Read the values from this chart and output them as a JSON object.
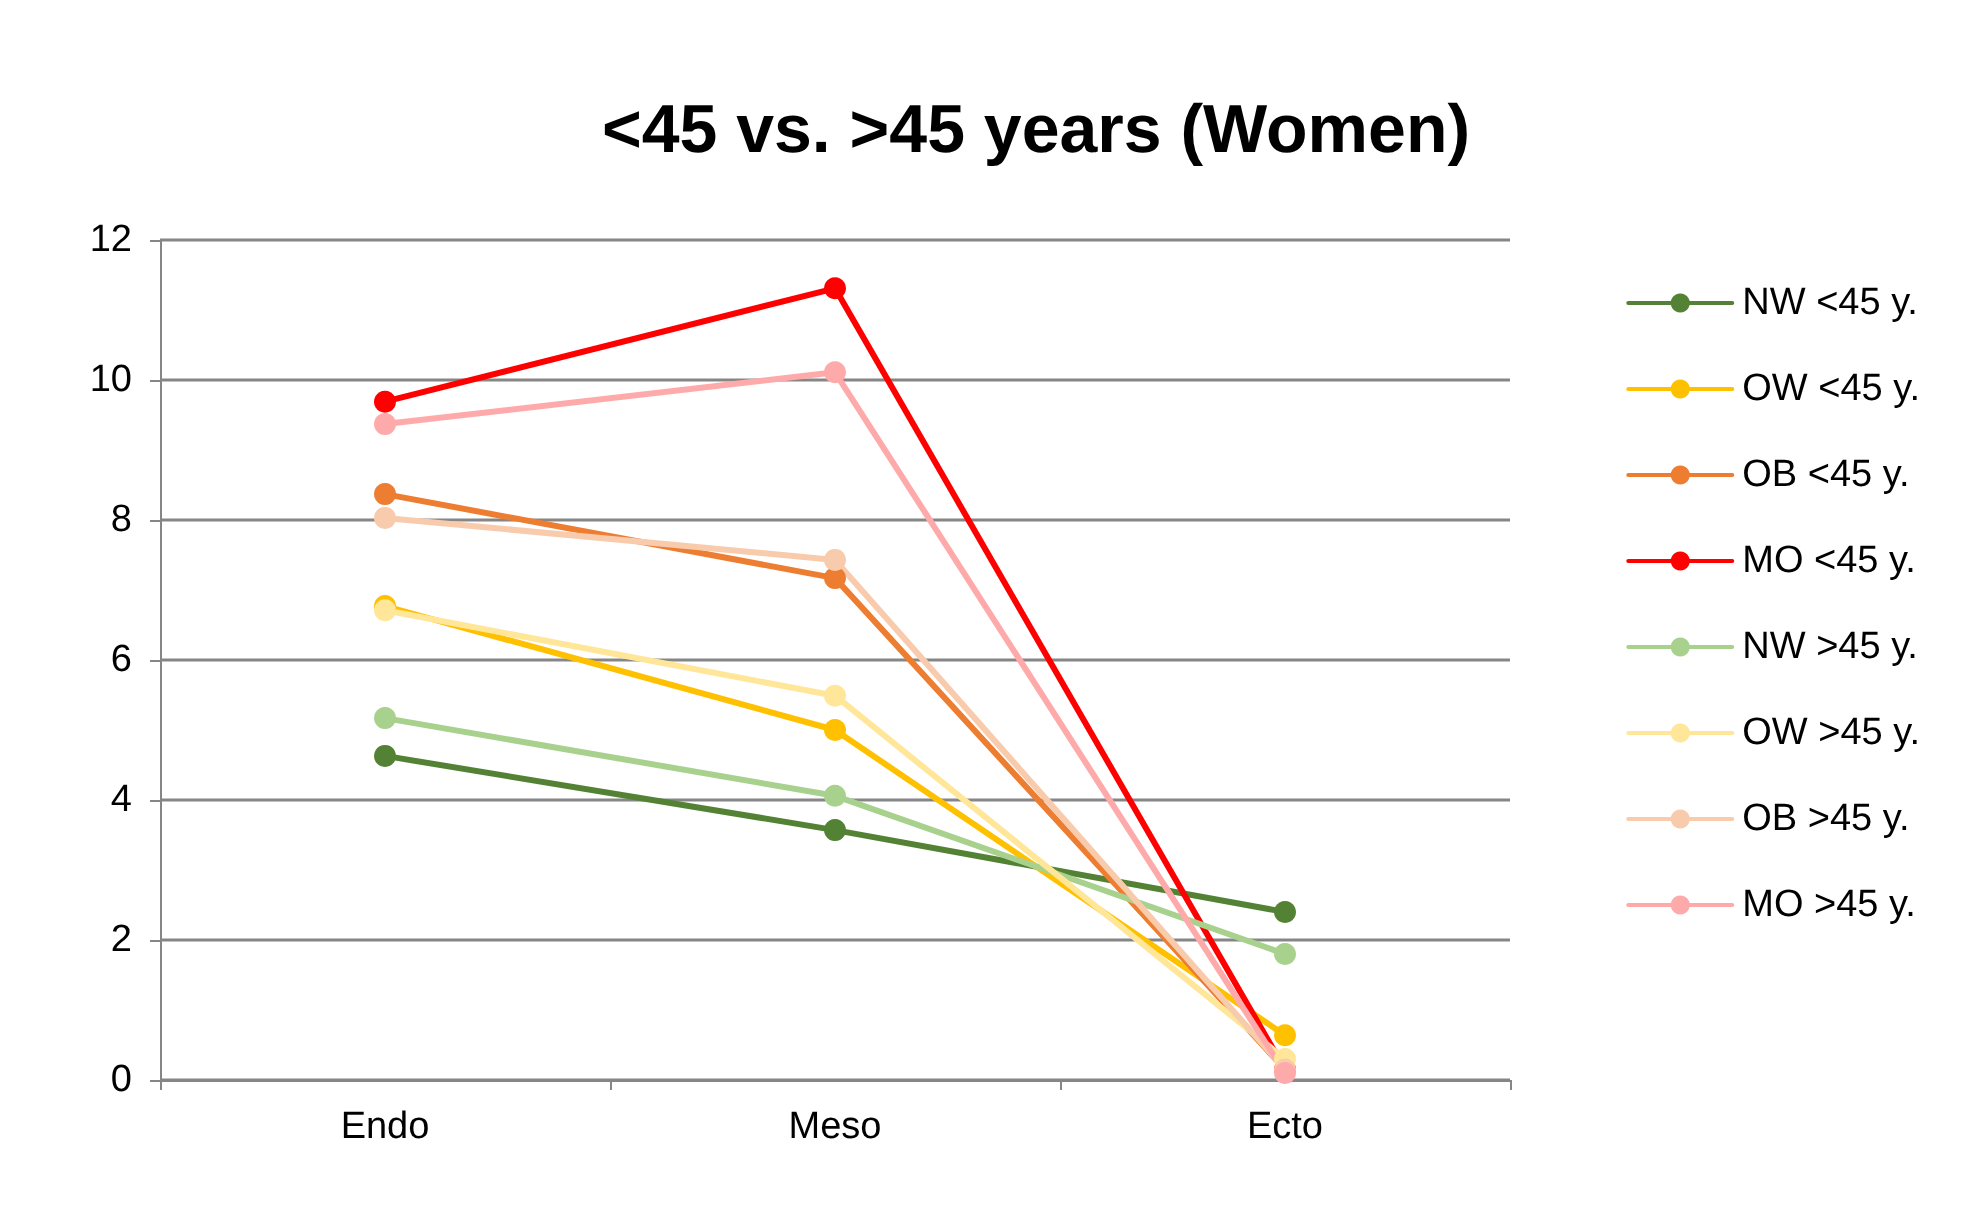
{
  "chart_data": {
    "type": "line",
    "title": "<45 vs. >45 years (Women)",
    "categories": [
      "Endo",
      "Meso",
      "Ecto"
    ],
    "series": [
      {
        "name": "NW <45 y.",
        "color": "#548235",
        "values": [
          4.63,
          3.57,
          2.4
        ]
      },
      {
        "name": "OW <45 y.",
        "color": "#ffc000",
        "values": [
          6.77,
          5.0,
          0.64
        ]
      },
      {
        "name": "OB <45 y.",
        "color": "#ed7d31",
        "values": [
          8.37,
          7.17,
          0.15
        ]
      },
      {
        "name": "MO <45 y.",
        "color": "#ff0000",
        "values": [
          9.69,
          11.31,
          0.15
        ]
      },
      {
        "name": "NW >45 y.",
        "color": "#a9d18e",
        "values": [
          5.17,
          4.06,
          1.8
        ]
      },
      {
        "name": "OW >45 y.",
        "color": "#ffe699",
        "values": [
          6.71,
          5.49,
          0.3
        ]
      },
      {
        "name": "OB >45 y.",
        "color": "#f8cbad",
        "values": [
          8.03,
          7.43,
          0.15
        ]
      },
      {
        "name": "MO >45 y.",
        "color": "#ffaaaa",
        "values": [
          9.37,
          10.11,
          0.1
        ]
      }
    ],
    "ylim": [
      0,
      12
    ],
    "yticks": [
      0,
      2,
      4,
      6,
      8,
      10,
      12
    ],
    "grid": "y",
    "legend": "right",
    "marker": "circle",
    "line_style": "solid"
  }
}
